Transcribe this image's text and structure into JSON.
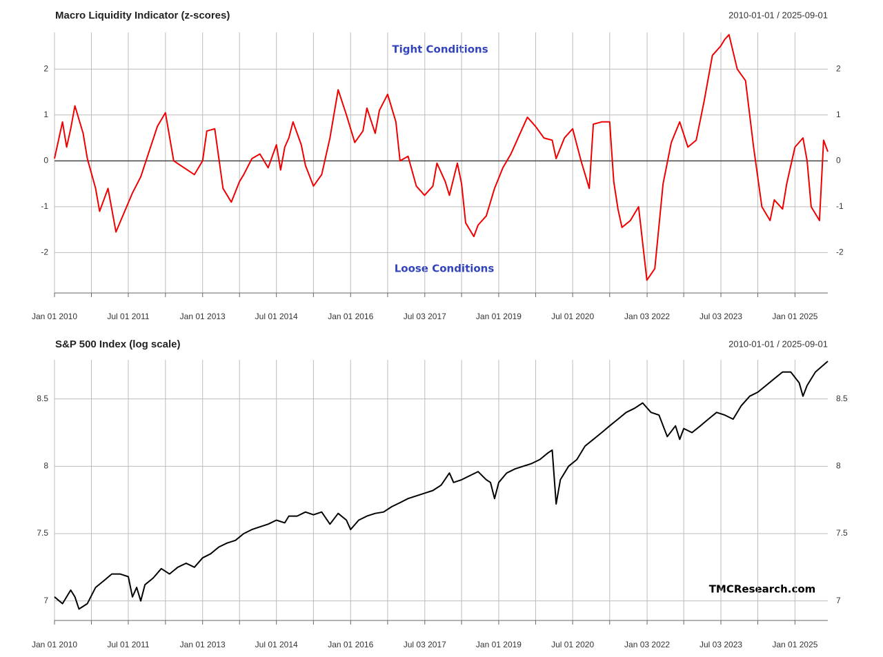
{
  "chart_data": [
    {
      "type": "line",
      "title": "Macro Liquidity Indicator (z-scores)",
      "subtitle": "2010-01-01 / 2025-09-01",
      "annotations": [
        "Tight Conditions",
        "Loose Conditions"
      ],
      "color": "#ee0000",
      "zero_line": true,
      "grid": true,
      "xlim": [
        "2010-01-01",
        "2025-09-01"
      ],
      "xticks": [
        {
          "value": "2010-01-01",
          "label": "Jan 01 2010"
        },
        {
          "value": "2011-07-01",
          "label": "Jul 01 2011"
        },
        {
          "value": "2013-01-01",
          "label": "Jan 01 2013"
        },
        {
          "value": "2014-07-01",
          "label": "Jul 01 2014"
        },
        {
          "value": "2016-01-01",
          "label": "Jan 01 2016"
        },
        {
          "value": "2017-07-03",
          "label": "Jul 03 2017"
        },
        {
          "value": "2019-01-01",
          "label": "Jan 01 2019"
        },
        {
          "value": "2020-07-01",
          "label": "Jul 01 2020"
        },
        {
          "value": "2022-01-03",
          "label": "Jan 03 2022"
        },
        {
          "value": "2023-07-03",
          "label": "Jul 03 2023"
        },
        {
          "value": "2025-01-01",
          "label": "Jan 01 2025"
        }
      ],
      "xminorticks": [
        "2010-10-01",
        "2012-04-01",
        "2013-10-01",
        "2015-04-01",
        "2016-10-01",
        "2018-04-01",
        "2019-10-01",
        "2021-04-01",
        "2022-10-01",
        "2024-04-01"
      ],
      "ylim": [
        -2.88,
        2.8
      ],
      "yticks": [
        -2,
        -1,
        0,
        1,
        2
      ],
      "x": [
        "2010-01-01",
        "2010-03-01",
        "2010-04-01",
        "2010-05-01",
        "2010-06-01",
        "2010-08-01",
        "2010-09-01",
        "2010-11-01",
        "2010-12-01",
        "2011-02-01",
        "2011-04-01",
        "2011-08-01",
        "2011-10-01",
        "2012-02-01",
        "2012-04-01",
        "2012-06-01",
        "2012-11-01",
        "2013-01-01",
        "2013-02-01",
        "2013-04-01",
        "2013-06-01",
        "2013-08-01",
        "2013-10-01",
        "2013-11-01",
        "2014-01-01",
        "2014-03-01",
        "2014-05-01",
        "2014-07-01",
        "2014-08-01",
        "2014-09-01",
        "2014-10-01",
        "2014-11-01",
        "2015-01-01",
        "2015-02-01",
        "2015-04-01",
        "2015-06-01",
        "2015-08-01",
        "2015-10-01",
        "2015-12-01",
        "2016-02-01",
        "2016-04-01",
        "2016-05-01",
        "2016-07-01",
        "2016-08-01",
        "2016-10-01",
        "2016-12-01",
        "2017-01-01",
        "2017-03-01",
        "2017-05-01",
        "2017-07-01",
        "2017-09-01",
        "2017-10-01",
        "2017-12-01",
        "2018-01-01",
        "2018-03-01",
        "2018-04-01",
        "2018-05-01",
        "2018-07-01",
        "2018-08-01",
        "2018-10-01",
        "2018-12-01",
        "2019-02-01",
        "2019-04-01",
        "2019-06-01",
        "2019-08-01",
        "2019-10-01",
        "2019-12-01",
        "2020-02-01",
        "2020-03-01",
        "2020-05-01",
        "2020-07-01",
        "2020-09-01",
        "2020-11-01",
        "2020-12-01",
        "2021-02-01",
        "2021-04-01",
        "2021-05-01",
        "2021-06-01",
        "2021-07-01",
        "2021-09-01",
        "2021-11-01",
        "2022-01-01",
        "2022-03-01",
        "2022-05-01",
        "2022-07-01",
        "2022-09-01",
        "2022-11-01",
        "2023-01-01",
        "2023-03-01",
        "2023-05-01",
        "2023-07-01",
        "2023-08-01",
        "2023-09-01",
        "2023-11-01",
        "2024-01-01",
        "2024-03-01",
        "2024-05-01",
        "2024-07-01",
        "2024-08-01",
        "2024-10-01",
        "2024-11-01",
        "2025-01-01",
        "2025-03-01",
        "2025-04-01",
        "2025-05-01",
        "2025-07-01",
        "2025-08-01",
        "2025-09-01"
      ],
      "values": [
        0.05,
        0.85,
        0.3,
        0.7,
        1.2,
        0.6,
        0.05,
        -0.6,
        -1.1,
        -0.6,
        -1.55,
        -0.7,
        -0.35,
        0.75,
        1.05,
        0.0,
        -0.3,
        0.0,
        0.65,
        0.7,
        -0.6,
        -0.9,
        -0.45,
        -0.3,
        0.05,
        0.15,
        -0.15,
        0.35,
        -0.2,
        0.3,
        0.5,
        0.85,
        0.35,
        -0.1,
        -0.55,
        -0.3,
        0.5,
        1.55,
        1.0,
        0.4,
        0.65,
        1.15,
        0.6,
        1.1,
        1.45,
        0.85,
        0.0,
        0.1,
        -0.55,
        -0.75,
        -0.55,
        -0.05,
        -0.45,
        -0.75,
        -0.05,
        -0.5,
        -1.35,
        -1.65,
        -1.4,
        -1.2,
        -0.6,
        -0.15,
        0.15,
        0.55,
        0.95,
        0.75,
        0.5,
        0.45,
        0.05,
        0.5,
        0.7,
        0.0,
        -0.6,
        0.8,
        0.85,
        0.85,
        -0.45,
        -1.05,
        -1.45,
        -1.3,
        -1.0,
        -2.6,
        -2.35,
        -0.5,
        0.4,
        0.85,
        0.3,
        0.45,
        1.3,
        2.3,
        2.5,
        2.65,
        2.75,
        2.0,
        1.75,
        0.3,
        -1.0,
        -1.3,
        -0.85,
        -1.05,
        -0.5,
        0.3,
        0.5,
        0.0,
        -1.0,
        -1.3,
        0.45,
        0.2
      ]
    },
    {
      "type": "line",
      "title": "S&P 500 Index (log scale)",
      "subtitle": "2010-01-01 / 2025-09-01",
      "annotations": [
        "TMCResearch.com"
      ],
      "color": "#000000",
      "zero_line": false,
      "grid": true,
      "xlim": [
        "2010-01-01",
        "2025-09-01"
      ],
      "xticks": [
        {
          "value": "2010-01-01",
          "label": "Jan 01 2010"
        },
        {
          "value": "2011-07-01",
          "label": "Jul 01 2011"
        },
        {
          "value": "2013-01-01",
          "label": "Jan 01 2013"
        },
        {
          "value": "2014-07-01",
          "label": "Jul 01 2014"
        },
        {
          "value": "2016-01-01",
          "label": "Jan 01 2016"
        },
        {
          "value": "2017-07-03",
          "label": "Jul 03 2017"
        },
        {
          "value": "2019-01-01",
          "label": "Jan 01 2019"
        },
        {
          "value": "2020-07-01",
          "label": "Jul 01 2020"
        },
        {
          "value": "2022-01-03",
          "label": "Jan 03 2022"
        },
        {
          "value": "2023-07-03",
          "label": "Jul 03 2023"
        },
        {
          "value": "2025-01-01",
          "label": "Jan 01 2025"
        }
      ],
      "xminorticks": [
        "2010-10-01",
        "2012-04-01",
        "2013-10-01",
        "2015-04-01",
        "2016-10-01",
        "2018-04-01",
        "2019-10-01",
        "2021-04-01",
        "2022-10-01",
        "2024-04-01"
      ],
      "ylim": [
        6.855,
        8.79
      ],
      "yticks": [
        7.0,
        7.5,
        8.0,
        8.5
      ],
      "x": [
        "2010-01-01",
        "2010-03-01",
        "2010-05-01",
        "2010-06-01",
        "2010-07-01",
        "2010-09-01",
        "2010-11-01",
        "2011-01-01",
        "2011-03-01",
        "2011-05-01",
        "2011-07-01",
        "2011-08-01",
        "2011-09-01",
        "2011-10-01",
        "2011-11-01",
        "2012-01-01",
        "2012-03-01",
        "2012-05-01",
        "2012-07-01",
        "2012-09-01",
        "2012-11-01",
        "2013-01-01",
        "2013-03-01",
        "2013-05-01",
        "2013-07-01",
        "2013-09-01",
        "2013-11-01",
        "2014-01-01",
        "2014-03-01",
        "2014-05-01",
        "2014-07-01",
        "2014-09-01",
        "2014-10-01",
        "2014-12-01",
        "2015-02-01",
        "2015-04-01",
        "2015-06-01",
        "2015-08-01",
        "2015-10-01",
        "2015-12-01",
        "2016-01-01",
        "2016-03-01",
        "2016-05-01",
        "2016-07-01",
        "2016-09-01",
        "2016-11-01",
        "2017-01-01",
        "2017-03-01",
        "2017-05-01",
        "2017-07-01",
        "2017-09-01",
        "2017-11-01",
        "2018-01-01",
        "2018-02-01",
        "2018-04-01",
        "2018-06-01",
        "2018-08-01",
        "2018-10-01",
        "2018-11-01",
        "2018-12-01",
        "2019-01-01",
        "2019-03-01",
        "2019-05-01",
        "2019-07-01",
        "2019-09-01",
        "2019-11-01",
        "2020-01-01",
        "2020-02-01",
        "2020-03-01",
        "2020-04-01",
        "2020-06-01",
        "2020-08-01",
        "2020-10-01",
        "2020-12-01",
        "2021-02-01",
        "2021-04-01",
        "2021-06-01",
        "2021-08-01",
        "2021-10-01",
        "2021-12-01",
        "2022-02-01",
        "2022-04-01",
        "2022-06-01",
        "2022-08-01",
        "2022-09-01",
        "2022-10-01",
        "2022-12-01",
        "2023-02-01",
        "2023-04-01",
        "2023-06-01",
        "2023-08-01",
        "2023-10-01",
        "2023-12-01",
        "2024-02-01",
        "2024-04-01",
        "2024-06-01",
        "2024-08-01",
        "2024-10-01",
        "2024-12-01",
        "2025-02-01",
        "2025-03-01",
        "2025-04-01",
        "2025-06-01",
        "2025-09-01"
      ],
      "values": [
        7.03,
        6.98,
        7.08,
        7.03,
        6.94,
        6.98,
        7.1,
        7.15,
        7.2,
        7.2,
        7.18,
        7.03,
        7.1,
        7.0,
        7.12,
        7.17,
        7.24,
        7.2,
        7.25,
        7.28,
        7.25,
        7.32,
        7.35,
        7.4,
        7.43,
        7.45,
        7.5,
        7.53,
        7.55,
        7.57,
        7.6,
        7.58,
        7.63,
        7.63,
        7.66,
        7.64,
        7.66,
        7.57,
        7.65,
        7.6,
        7.53,
        7.6,
        7.63,
        7.65,
        7.66,
        7.7,
        7.73,
        7.76,
        7.78,
        7.8,
        7.82,
        7.86,
        7.95,
        7.88,
        7.9,
        7.93,
        7.96,
        7.9,
        7.88,
        7.76,
        7.88,
        7.95,
        7.98,
        8.0,
        8.02,
        8.05,
        8.1,
        8.12,
        7.72,
        7.9,
        8.0,
        8.05,
        8.15,
        8.2,
        8.25,
        8.3,
        8.35,
        8.4,
        8.43,
        8.47,
        8.4,
        8.38,
        8.22,
        8.3,
        8.2,
        8.28,
        8.25,
        8.3,
        8.35,
        8.4,
        8.38,
        8.35,
        8.45,
        8.52,
        8.55,
        8.6,
        8.65,
        8.7,
        8.7,
        8.62,
        8.52,
        8.6,
        8.7,
        8.78
      ]
    }
  ]
}
